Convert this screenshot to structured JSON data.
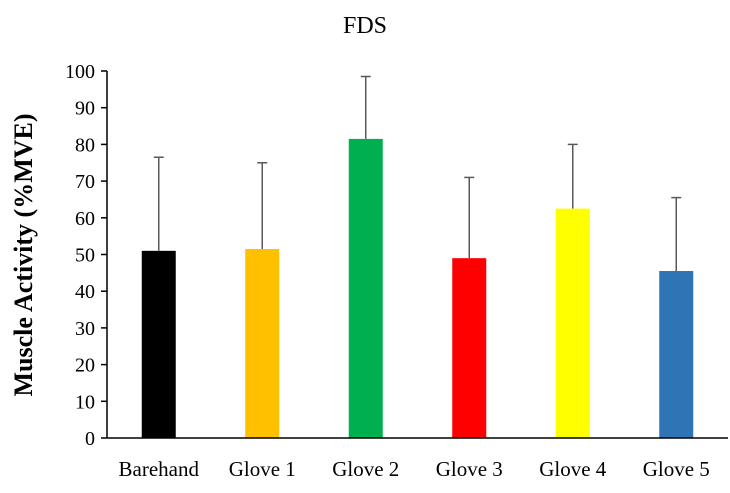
{
  "chart_data": {
    "type": "bar",
    "title": "FDS",
    "xlabel": "",
    "ylabel": "Muscle Activity (%MVE)",
    "ylim": [
      0,
      100
    ],
    "yticks": [
      0,
      10,
      20,
      30,
      40,
      50,
      60,
      70,
      80,
      90,
      100
    ],
    "grid": false,
    "legend": "none",
    "categories": [
      "Barehand",
      "Glove 1",
      "Glove 2",
      "Glove 3",
      "Glove 4",
      "Glove 5"
    ],
    "values": [
      51,
      51.5,
      81.5,
      49,
      62.5,
      45.5
    ],
    "error_upper": [
      25.5,
      23.5,
      17,
      22,
      17.5,
      20
    ],
    "colors": [
      "#000000",
      "#ffc000",
      "#00b050",
      "#ff0000",
      "#ffff00",
      "#2e75b6"
    ],
    "error_color": "#595959",
    "axis_color": "#000000"
  }
}
